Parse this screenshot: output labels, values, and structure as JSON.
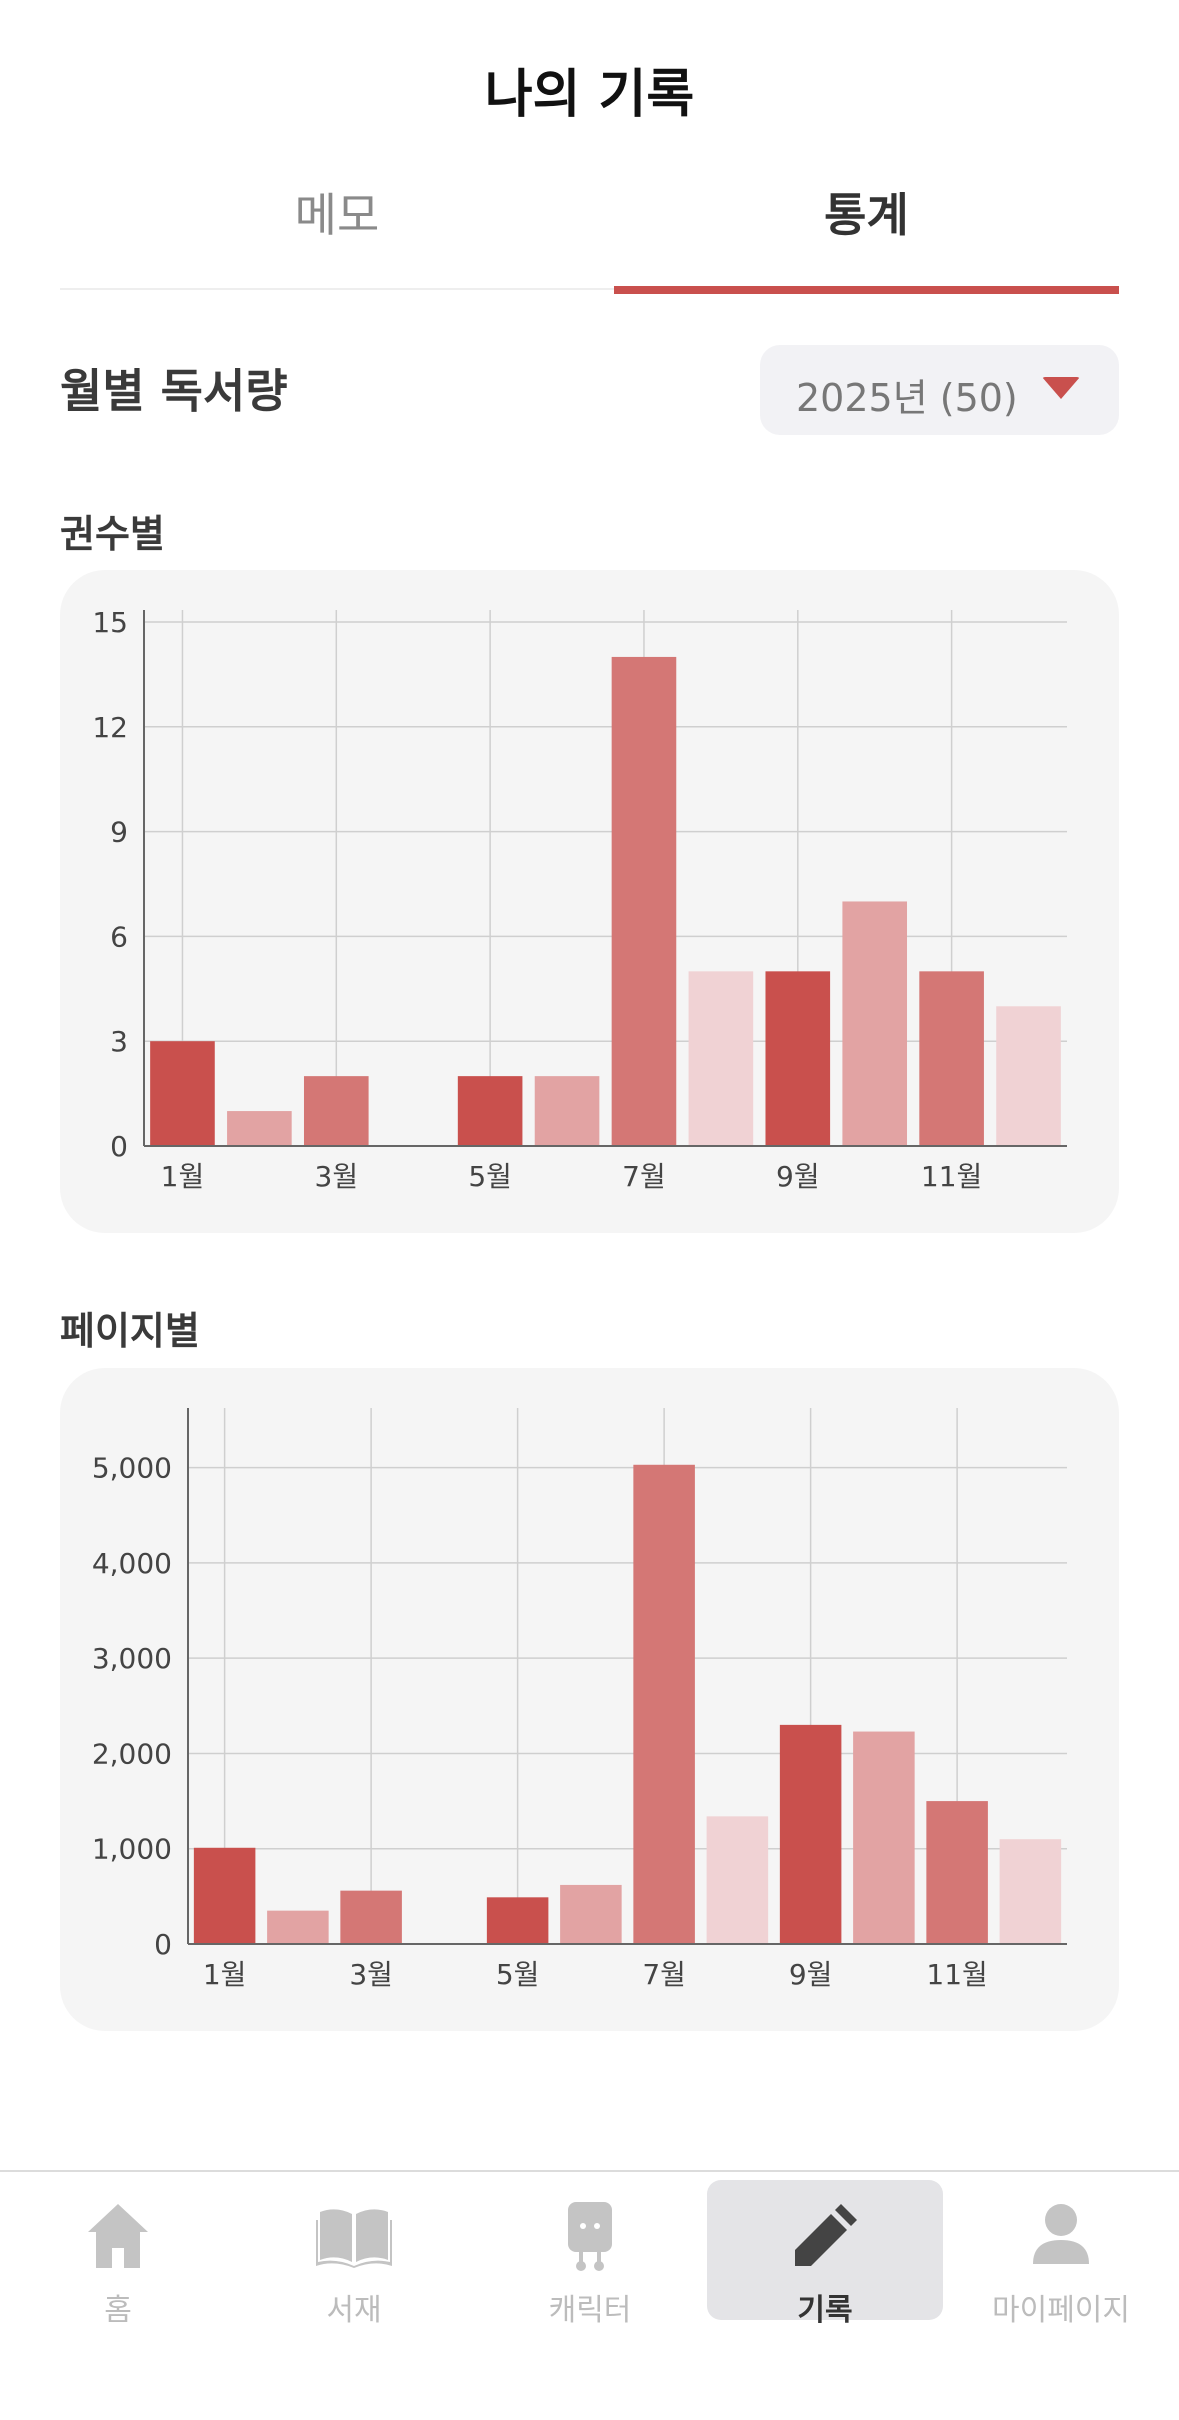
{
  "header": {
    "title": "나의 기록"
  },
  "tabs": [
    {
      "label": "메모",
      "active": false
    },
    {
      "label": "통계",
      "active": true
    }
  ],
  "section": {
    "title": "월별 독서량",
    "year_select": "2025년 (50)"
  },
  "charts": {
    "books_label": "권수별",
    "pages_label": "페이지별"
  },
  "colors": {
    "accent": "#c9504d",
    "bar_cycle": [
      "#c9504d",
      "#e2a3a3",
      "#d47775",
      "#f0d2d4"
    ]
  },
  "chart_data": [
    {
      "type": "bar",
      "title": "권수별",
      "categories": [
        "1월",
        "2월",
        "3월",
        "4월",
        "5월",
        "6월",
        "7월",
        "8월",
        "9월",
        "10월",
        "11월",
        "12월"
      ],
      "tick_labels": [
        "1월",
        "3월",
        "5월",
        "7월",
        "9월",
        "11월"
      ],
      "values": [
        3,
        1,
        2,
        0,
        2,
        2,
        14,
        5,
        5,
        7,
        5,
        4
      ],
      "ylim": [
        0,
        15
      ],
      "yticks": [
        "0",
        "3",
        "6",
        "9",
        "12",
        "15"
      ],
      "ytick_values": [
        0,
        3,
        6,
        9,
        12,
        15
      ],
      "grid": true
    },
    {
      "type": "bar",
      "title": "페이지별",
      "categories": [
        "1월",
        "2월",
        "3월",
        "4월",
        "5월",
        "6월",
        "7월",
        "8월",
        "9월",
        "10월",
        "11월",
        "12월"
      ],
      "tick_labels": [
        "1월",
        "3월",
        "5월",
        "7월",
        "9월",
        "11월"
      ],
      "values": [
        1010,
        350,
        560,
        0,
        490,
        620,
        5030,
        1340,
        2300,
        2230,
        1500,
        1100
      ],
      "ylim": [
        0,
        5500
      ],
      "yticks": [
        "0",
        "1,000",
        "2,000",
        "3,000",
        "4,000",
        "5,000"
      ],
      "ytick_values": [
        0,
        1000,
        2000,
        3000,
        4000,
        5000
      ],
      "grid": true
    }
  ],
  "bottom_nav": [
    {
      "label": "홈",
      "icon": "home-icon",
      "active": false
    },
    {
      "label": "서재",
      "icon": "book-icon",
      "active": false
    },
    {
      "label": "캐릭터",
      "icon": "character-icon",
      "active": false
    },
    {
      "label": "기록",
      "icon": "pencil-icon",
      "active": true
    },
    {
      "label": "마이페이지",
      "icon": "person-icon",
      "active": false
    }
  ]
}
